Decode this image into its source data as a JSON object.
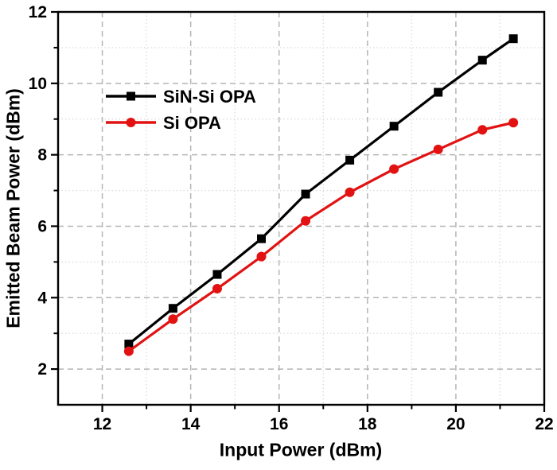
{
  "figure": {
    "background": "#ffffff",
    "frame_color": "#000000"
  },
  "chart_data": {
    "type": "line",
    "title": "",
    "xlabel": "Input Power (dBm)",
    "ylabel": "Emitted Beam Power (dBm)",
    "xlim": [
      11,
      22
    ],
    "ylim": [
      1,
      12
    ],
    "x_major_ticks": [
      12,
      14,
      16,
      18,
      20,
      22
    ],
    "x_minor_ticks": [
      13,
      15,
      17,
      19,
      21
    ],
    "y_major_ticks": [
      2,
      4,
      6,
      8,
      10,
      12
    ],
    "y_minor_ticks": [
      3,
      5,
      7,
      9,
      11
    ],
    "grid": "major-dashed, minor-dotted",
    "legend_position": "upper-left-inside",
    "x": [
      12.6,
      13.6,
      14.6,
      15.6,
      16.6,
      17.6,
      18.6,
      19.6,
      20.6,
      21.3
    ],
    "series": [
      {
        "name": "SiN-Si OPA",
        "color": "#000000",
        "marker": "square",
        "values": [
          2.7,
          3.7,
          4.65,
          5.65,
          6.9,
          7.85,
          8.8,
          9.75,
          10.65,
          11.25
        ]
      },
      {
        "name": "Si OPA",
        "color": "#e21212",
        "marker": "circle",
        "values": [
          2.5,
          3.4,
          4.25,
          5.15,
          6.15,
          6.95,
          7.6,
          8.15,
          8.7,
          8.9
        ]
      }
    ],
    "colors": {
      "major_grid": "#b5b5b5",
      "minor_grid": "#dedede",
      "axis": "#000000",
      "tick_label": "#000000"
    }
  }
}
